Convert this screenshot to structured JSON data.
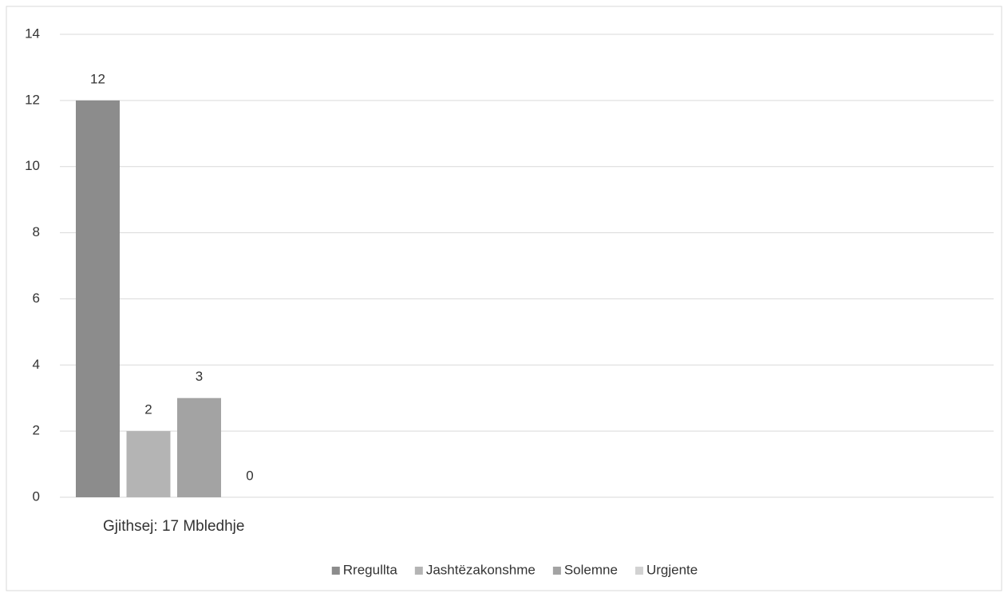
{
  "chart_data": {
    "type": "bar",
    "categories": [
      "Gjithsej: 17 Mbledhje"
    ],
    "series": [
      {
        "name": "Rregullta",
        "color": "#8c8c8c",
        "values": [
          12
        ]
      },
      {
        "name": "Jashtëzakonshme",
        "color": "#b4b4b4",
        "values": [
          2
        ]
      },
      {
        "name": "Solemne",
        "color": "#a3a3a3",
        "values": [
          3
        ]
      },
      {
        "name": "Urgjente",
        "color": "#d2d2d2",
        "values": [
          0
        ]
      }
    ],
    "ylim": [
      0,
      14
    ],
    "yticks": [
      0,
      2,
      4,
      6,
      8,
      10,
      12,
      14
    ],
    "grid": true,
    "legend": "bottom"
  }
}
